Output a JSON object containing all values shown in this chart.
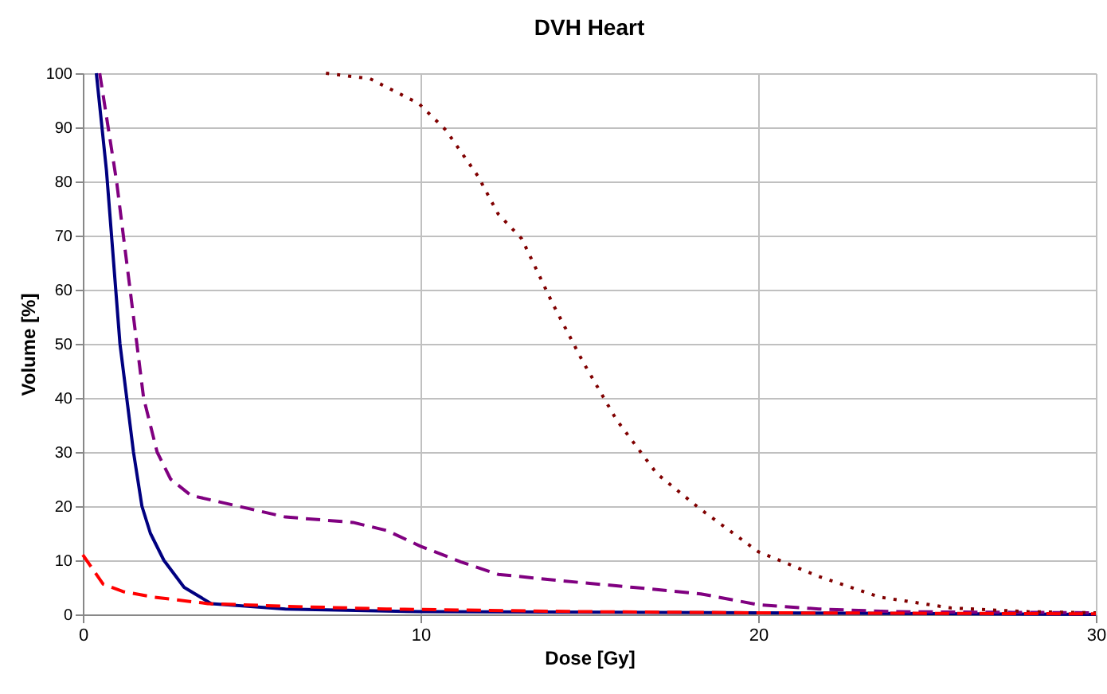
{
  "chart_data": {
    "type": "line",
    "title": "DVH Heart",
    "xlabel": "Dose [Gy]",
    "ylabel": "Volume [%]",
    "xlim": [
      0,
      30
    ],
    "xticks": [
      0,
      10,
      20,
      30
    ],
    "ylim": [
      0,
      100
    ],
    "yticks": [
      0,
      10,
      20,
      30,
      40,
      50,
      60,
      70,
      80,
      90,
      100
    ],
    "grid": true,
    "marker": "none",
    "series": [
      {
        "color": "#000080",
        "line_style": "solid",
        "x": [
          0.4,
          0.7,
          1.1,
          1.5,
          1.75,
          2.0,
          2.4,
          3.0,
          3.8,
          6,
          10,
          20,
          30
        ],
        "values": [
          100,
          82,
          50,
          30,
          20,
          15,
          10,
          5,
          2,
          1,
          0.5,
          0.3,
          0
        ]
      },
      {
        "color": "#800080",
        "line_style": "dashed",
        "x": [
          0.5,
          1.0,
          1.4,
          1.8,
          2.2,
          2.6,
          3.2,
          4.6,
          6,
          8,
          9,
          10,
          11.2,
          12.3,
          14.2,
          16.3,
          18.3,
          20,
          21.8,
          24,
          30
        ],
        "values": [
          100,
          80,
          60,
          40,
          30,
          25,
          22,
          20,
          18,
          17,
          15.5,
          12.6,
          9.7,
          7.4,
          6.2,
          5,
          3.8,
          1.8,
          1,
          0.5,
          0.3
        ]
      },
      {
        "color": "#800000",
        "line_style": "dotted",
        "x": [
          7.2,
          8.5,
          9.95,
          10.75,
          11.7,
          12.3,
          13,
          13.9,
          14.8,
          15.8,
          17,
          18.3,
          20,
          21.8,
          23.6,
          25.7,
          28,
          30
        ],
        "values": [
          100,
          99,
          94.4,
          89.5,
          81,
          74,
          69.4,
          57.6,
          46.8,
          36,
          26,
          19.4,
          11.6,
          7,
          3.2,
          1.2,
          0.5,
          0.3
        ]
      },
      {
        "color": "#ff0000",
        "line_style": "dashed",
        "x": [
          0,
          0.6,
          1.2,
          2.1,
          3.7,
          6,
          9,
          15,
          20,
          30
        ],
        "values": [
          11,
          5.6,
          4.2,
          3.2,
          2,
          1.5,
          1,
          0.5,
          0.3,
          0.1
        ]
      }
    ]
  }
}
